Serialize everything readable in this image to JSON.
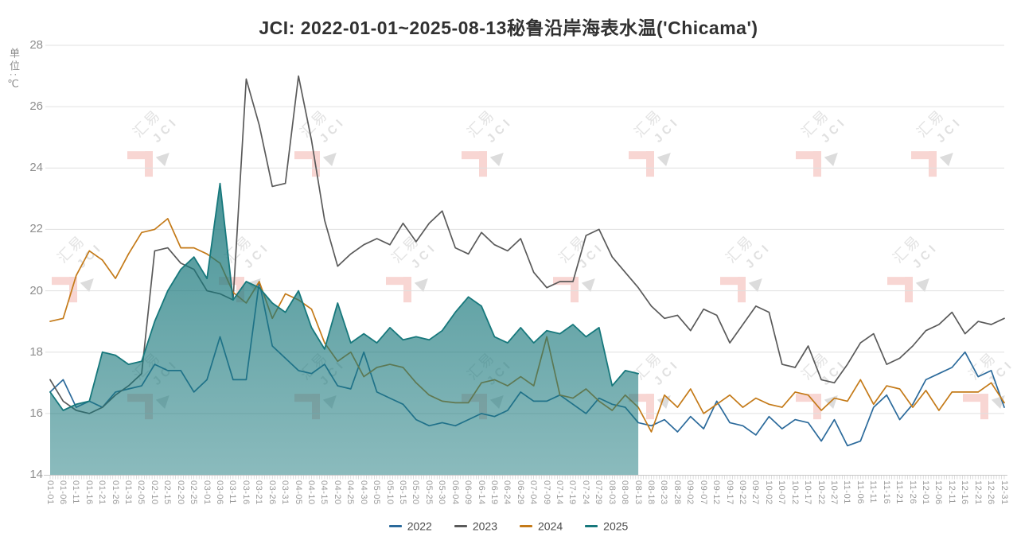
{
  "title": "JCI: 2022-01-01~2025-08-13秘鲁沿岸海表水温('Chicama')",
  "y_axis": {
    "unit_label": "单位:℃",
    "ticks": [
      14,
      16,
      18,
      20,
      22,
      24,
      26,
      28
    ]
  },
  "watermark": {
    "cn": "汇易",
    "en": "JCI"
  },
  "colors": {
    "s2022": "#2b6a9b",
    "s2023": "#5a5a5a",
    "s2024": "#c47a18",
    "s2025": "#17787c",
    "grid": "#e0e0e0",
    "axis": "#c8c8c8"
  },
  "chart_data": {
    "type": "line",
    "title": "JCI: 2022-01-01~2025-08-13秘鲁沿岸海表水温('Chicama')",
    "ylabel": "单位:℃",
    "ylim": [
      14,
      28
    ],
    "grid": true,
    "legend_position": "bottom",
    "x": [
      "01-01",
      "01-06",
      "01-11",
      "01-16",
      "01-21",
      "01-26",
      "01-31",
      "02-05",
      "02-10",
      "02-15",
      "02-20",
      "02-25",
      "03-01",
      "03-06",
      "03-11",
      "03-16",
      "03-21",
      "03-26",
      "03-31",
      "04-05",
      "04-10",
      "04-15",
      "04-20",
      "04-25",
      "04-30",
      "05-05",
      "05-10",
      "05-15",
      "05-20",
      "05-25",
      "05-30",
      "06-04",
      "06-09",
      "06-14",
      "06-19",
      "06-24",
      "06-29",
      "07-04",
      "07-09",
      "07-14",
      "07-19",
      "07-24",
      "07-29",
      "08-03",
      "08-08",
      "08-13",
      "08-18",
      "08-23",
      "08-28",
      "09-02",
      "09-07",
      "09-12",
      "09-17",
      "09-22",
      "09-27",
      "10-02",
      "10-07",
      "10-12",
      "10-17",
      "10-22",
      "10-27",
      "11-01",
      "11-06",
      "11-11",
      "11-16",
      "11-21",
      "11-26",
      "12-01",
      "12-06",
      "12-11",
      "12-16",
      "12-21",
      "12-26",
      "12-31"
    ],
    "series": [
      {
        "name": "2022",
        "color": "#2b6a9b",
        "style": "line",
        "values": [
          16.7,
          17.1,
          16.2,
          16.4,
          16.2,
          16.7,
          16.8,
          16.9,
          17.6,
          17.4,
          17.4,
          16.7,
          17.1,
          18.5,
          17.1,
          17.1,
          20.3,
          18.2,
          17.8,
          17.4,
          17.3,
          17.6,
          16.9,
          16.8,
          18.0,
          16.7,
          16.5,
          16.3,
          15.8,
          15.6,
          15.7,
          15.6,
          15.8,
          16.0,
          15.9,
          16.1,
          16.7,
          16.4,
          16.4,
          16.6,
          16.3,
          16.0,
          16.5,
          16.3,
          16.2,
          15.7,
          15.6,
          15.8,
          15.4,
          15.9,
          15.5,
          16.4,
          15.7,
          15.6,
          15.3,
          15.9,
          15.5,
          15.8,
          15.7,
          15.1,
          15.8,
          14.95,
          15.1,
          16.2,
          16.6,
          15.8,
          16.3,
          17.1,
          17.3,
          17.5,
          18.0,
          17.2,
          17.4,
          16.2
        ]
      },
      {
        "name": "2023",
        "color": "#5a5a5a",
        "style": "line",
        "values": [
          17.1,
          16.4,
          16.1,
          16.0,
          16.2,
          16.6,
          16.9,
          17.3,
          21.3,
          21.4,
          20.9,
          20.7,
          20.0,
          19.9,
          19.7,
          26.9,
          25.4,
          23.4,
          23.5,
          27.0,
          24.9,
          22.3,
          20.8,
          21.2,
          21.5,
          21.7,
          21.5,
          22.2,
          21.6,
          22.2,
          22.6,
          21.4,
          21.2,
          21.9,
          21.5,
          21.3,
          21.7,
          20.6,
          20.1,
          20.3,
          20.3,
          21.8,
          22.0,
          21.1,
          20.6,
          20.1,
          19.5,
          19.1,
          19.2,
          18.7,
          19.4,
          19.2,
          18.3,
          18.9,
          19.5,
          19.3,
          17.6,
          17.5,
          18.2,
          17.1,
          17.0,
          17.6,
          18.3,
          18.6,
          17.6,
          17.8,
          18.2,
          18.7,
          18.9,
          19.3,
          18.6,
          19.0,
          18.9,
          19.1
        ]
      },
      {
        "name": "2024",
        "color": "#c47a18",
        "style": "line",
        "values": [
          19.0,
          19.1,
          20.5,
          21.3,
          21.0,
          20.4,
          21.2,
          21.9,
          22.0,
          22.35,
          21.4,
          21.4,
          21.2,
          20.9,
          19.95,
          19.6,
          20.3,
          19.1,
          19.9,
          19.7,
          19.4,
          18.3,
          17.7,
          18.0,
          17.2,
          17.5,
          17.6,
          17.5,
          17.0,
          16.6,
          16.4,
          16.35,
          16.35,
          17.0,
          17.1,
          16.9,
          17.2,
          16.9,
          18.5,
          16.6,
          16.5,
          16.8,
          16.4,
          16.1,
          16.6,
          16.2,
          15.4,
          16.6,
          16.2,
          16.8,
          16.0,
          16.3,
          16.6,
          16.2,
          16.5,
          16.3,
          16.2,
          16.7,
          16.6,
          16.1,
          16.5,
          16.4,
          17.1,
          16.3,
          16.9,
          16.8,
          16.2,
          16.75,
          16.1,
          16.7,
          16.7,
          16.7,
          17.0,
          16.35
        ]
      },
      {
        "name": "2025",
        "color": "#17787c",
        "style": "area",
        "fill_top": "rgba(23,119,123,0.78)",
        "fill_bottom": "rgba(23,119,123,0.5)",
        "values": [
          16.7,
          16.1,
          16.3,
          16.4,
          18.0,
          17.9,
          17.6,
          17.7,
          19.0,
          20.0,
          20.7,
          21.1,
          20.4,
          23.5,
          19.7,
          20.3,
          20.1,
          19.6,
          19.3,
          20.0,
          18.8,
          18.1,
          19.6,
          18.3,
          18.6,
          18.3,
          18.8,
          18.4,
          18.5,
          18.4,
          18.7,
          19.3,
          19.8,
          19.5,
          18.5,
          18.3,
          18.8,
          18.3,
          18.7,
          18.6,
          18.9,
          18.5,
          18.8,
          16.9,
          17.4,
          17.3
        ]
      }
    ]
  }
}
